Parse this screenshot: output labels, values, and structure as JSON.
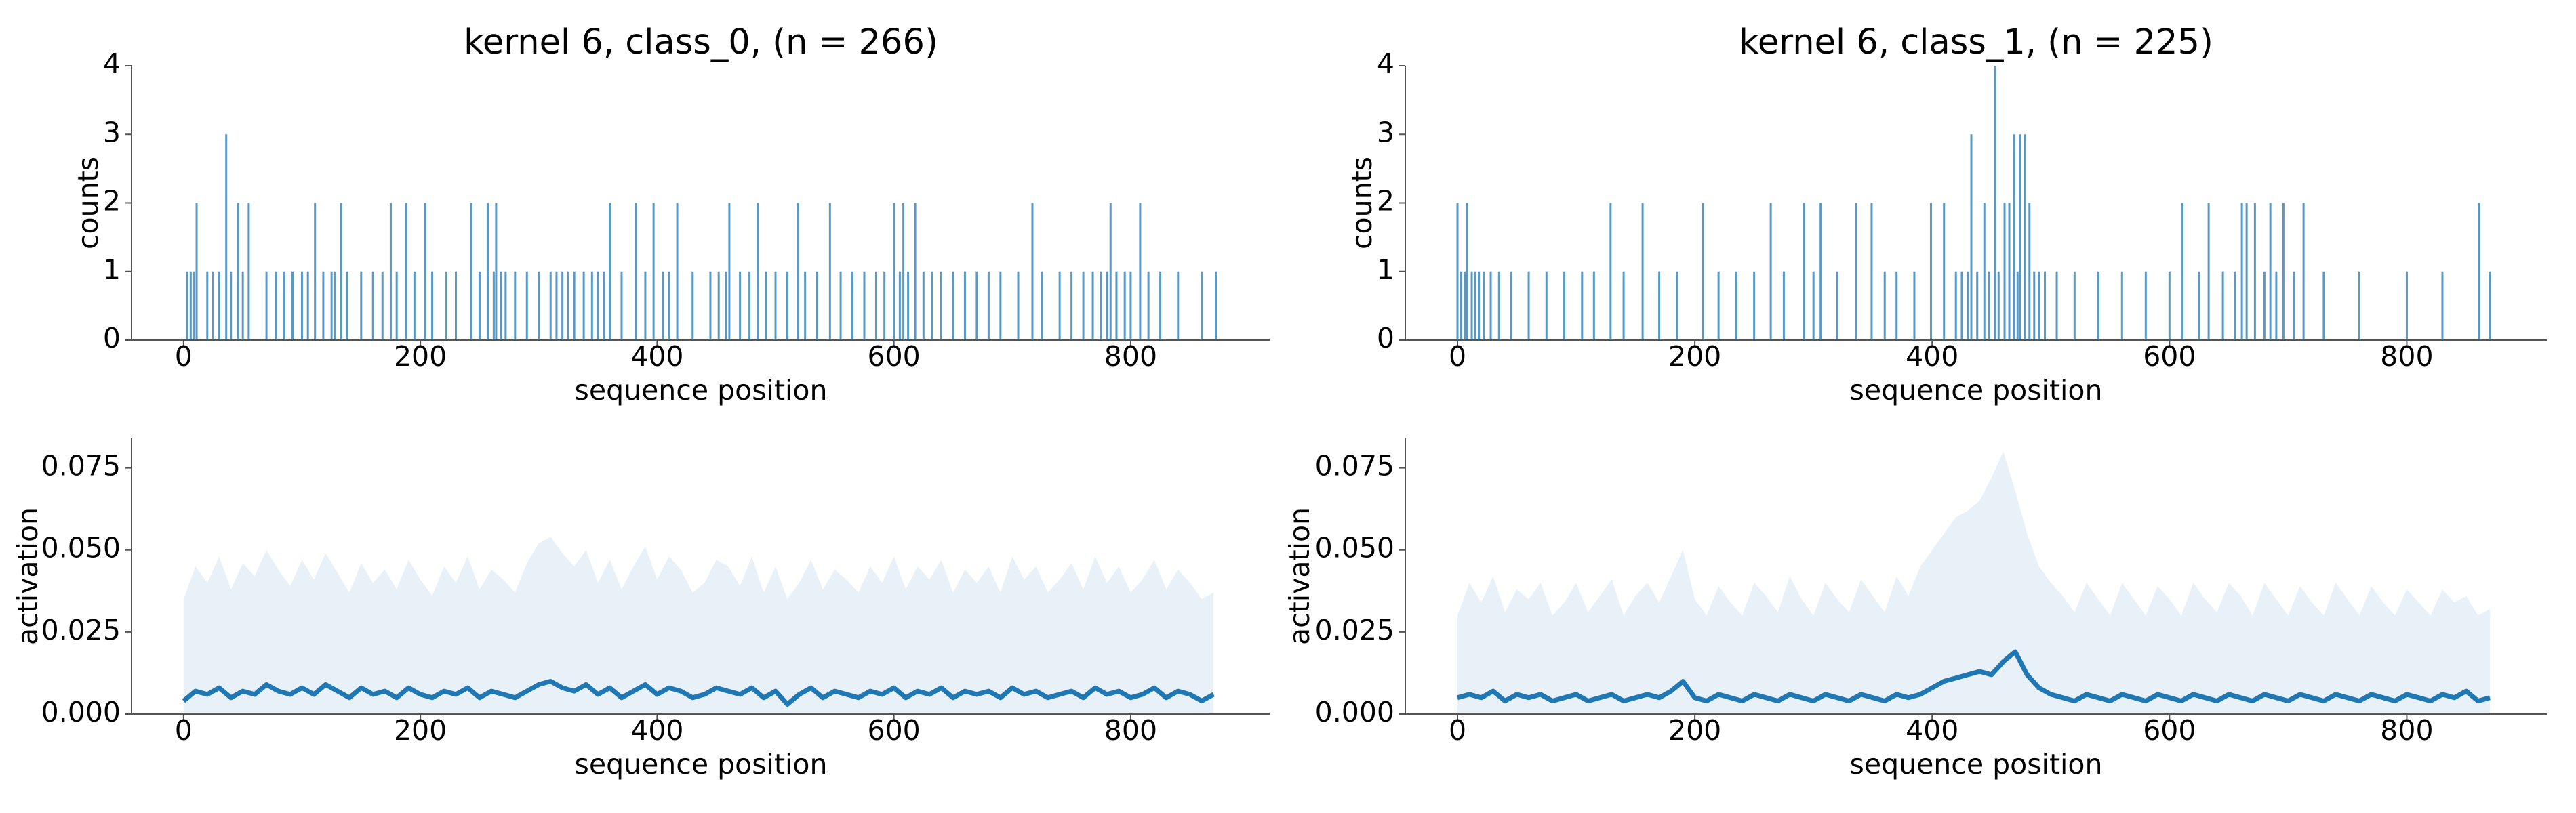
{
  "chart_data": [
    {
      "type": "bar",
      "title": "kernel 6, class_0, (n = 266)",
      "x_label": "sequence position",
      "y_label": "counts",
      "color": "#1f77b4",
      "xlim": [
        -44,
        918
      ],
      "xticks": [
        0,
        200,
        400,
        600,
        800
      ],
      "ylim": [
        0,
        4
      ],
      "yticks": [
        0,
        1,
        2,
        3,
        4
      ],
      "x": [
        3,
        6,
        9,
        11,
        20,
        25,
        30,
        36,
        40,
        46,
        50,
        55,
        70,
        78,
        85,
        92,
        100,
        105,
        111,
        118,
        125,
        128,
        133,
        138,
        150,
        160,
        168,
        175,
        180,
        188,
        195,
        204,
        210,
        222,
        230,
        243,
        250,
        257,
        262,
        264,
        268,
        272,
        280,
        290,
        300,
        310,
        315,
        320,
        325,
        330,
        338,
        345,
        350,
        355,
        360,
        370,
        382,
        390,
        397,
        405,
        410,
        417,
        430,
        445,
        452,
        458,
        461,
        470,
        478,
        485,
        492,
        500,
        510,
        519,
        525,
        535,
        546,
        555,
        565,
        575,
        585,
        592,
        600,
        605,
        608,
        612,
        618,
        625,
        632,
        640,
        650,
        660,
        670,
        680,
        690,
        705,
        717,
        725,
        740,
        750,
        760,
        768,
        775,
        780,
        783,
        788,
        795,
        800,
        808,
        815,
        825,
        840,
        860,
        872
      ],
      "values": [
        1,
        1,
        1,
        2,
        1,
        1,
        1,
        3,
        1,
        2,
        1,
        2,
        1,
        1,
        1,
        1,
        1,
        1,
        2,
        1,
        1,
        1,
        2,
        1,
        1,
        1,
        1,
        2,
        1,
        2,
        1,
        2,
        1,
        1,
        1,
        2,
        1,
        2,
        1,
        2,
        1,
        1,
        1,
        1,
        1,
        1,
        1,
        1,
        1,
        1,
        1,
        1,
        1,
        1,
        2,
        1,
        2,
        1,
        2,
        1,
        1,
        2,
        1,
        1,
        1,
        1,
        2,
        1,
        1,
        2,
        1,
        1,
        1,
        2,
        1,
        1,
        2,
        1,
        1,
        1,
        1,
        1,
        2,
        1,
        2,
        1,
        2,
        1,
        1,
        1,
        1,
        1,
        1,
        1,
        1,
        1,
        2,
        1,
        1,
        1,
        1,
        1,
        1,
        1,
        2,
        1,
        1,
        1,
        2,
        1,
        1,
        1,
        1,
        1
      ]
    },
    {
      "type": "bar",
      "title": "kernel 6, class_1, (n = 225)",
      "x_label": "sequence position",
      "y_label": "counts",
      "color": "#1f77b4",
      "xlim": [
        -44,
        918
      ],
      "xticks": [
        0,
        200,
        400,
        600,
        800
      ],
      "ylim": [
        0,
        4
      ],
      "yticks": [
        0,
        1,
        2,
        3,
        4
      ],
      "x": [
        0,
        3,
        6,
        8,
        12,
        15,
        18,
        22,
        28,
        35,
        45,
        60,
        75,
        90,
        105,
        115,
        129,
        140,
        156,
        170,
        185,
        207,
        220,
        235,
        250,
        264,
        275,
        292,
        300,
        306,
        320,
        336,
        349,
        360,
        370,
        385,
        399,
        410,
        420,
        425,
        430,
        433,
        438,
        444,
        448,
        453,
        456,
        461,
        465,
        469,
        472,
        474,
        478,
        482,
        486,
        490,
        495,
        505,
        520,
        540,
        560,
        580,
        600,
        611,
        625,
        633,
        645,
        655,
        661,
        665,
        672,
        680,
        685,
        690,
        696,
        705,
        713,
        730,
        760,
        800,
        830,
        861,
        870
      ],
      "values": [
        2,
        1,
        1,
        2,
        1,
        1,
        1,
        1,
        1,
        1,
        1,
        1,
        1,
        1,
        1,
        1,
        2,
        1,
        2,
        1,
        1,
        2,
        1,
        1,
        1,
        2,
        1,
        2,
        1,
        2,
        1,
        2,
        2,
        1,
        1,
        1,
        2,
        2,
        1,
        1,
        1,
        3,
        1,
        2,
        1,
        4,
        1,
        2,
        2,
        3,
        1,
        3,
        3,
        2,
        1,
        1,
        1,
        1,
        1,
        1,
        1,
        1,
        1,
        2,
        1,
        2,
        1,
        1,
        2,
        2,
        2,
        1,
        2,
        1,
        2,
        1,
        2,
        1,
        1,
        1,
        1,
        2,
        1
      ]
    },
    {
      "type": "line",
      "x_label": "sequence position",
      "y_label": "activation",
      "color": "#1f77b4",
      "xlim": [
        -44,
        918
      ],
      "xticks": [
        0,
        200,
        400,
        600,
        800
      ],
      "ylim": [
        0,
        0.084
      ],
      "yticks": [
        {
          "value": 0,
          "label": "0.000"
        },
        {
          "value": 0.025,
          "label": "0.025"
        },
        {
          "value": 0.05,
          "label": "0.050"
        },
        {
          "value": 0.075,
          "label": "0.075"
        }
      ],
      "x": [
        0,
        10,
        20,
        30,
        40,
        50,
        60,
        70,
        80,
        90,
        100,
        110,
        120,
        130,
        140,
        150,
        160,
        170,
        180,
        190,
        200,
        210,
        220,
        230,
        240,
        250,
        260,
        270,
        280,
        290,
        300,
        310,
        320,
        330,
        340,
        350,
        360,
        370,
        380,
        390,
        400,
        410,
        420,
        430,
        440,
        450,
        460,
        470,
        480,
        490,
        500,
        510,
        520,
        530,
        540,
        550,
        560,
        570,
        580,
        590,
        600,
        610,
        620,
        630,
        640,
        650,
        660,
        670,
        680,
        690,
        700,
        710,
        720,
        730,
        740,
        750,
        760,
        770,
        780,
        790,
        800,
        810,
        820,
        830,
        840,
        850,
        860,
        870
      ],
      "values": [
        0.004,
        0.007,
        0.006,
        0.008,
        0.005,
        0.007,
        0.006,
        0.009,
        0.007,
        0.006,
        0.008,
        0.006,
        0.009,
        0.007,
        0.005,
        0.008,
        0.006,
        0.007,
        0.005,
        0.008,
        0.006,
        0.005,
        0.007,
        0.006,
        0.008,
        0.005,
        0.007,
        0.006,
        0.005,
        0.007,
        0.009,
        0.01,
        0.008,
        0.007,
        0.009,
        0.006,
        0.008,
        0.005,
        0.007,
        0.009,
        0.006,
        0.008,
        0.007,
        0.005,
        0.006,
        0.008,
        0.007,
        0.006,
        0.008,
        0.005,
        0.007,
        0.003,
        0.006,
        0.008,
        0.005,
        0.007,
        0.006,
        0.005,
        0.007,
        0.006,
        0.008,
        0.005,
        0.007,
        0.006,
        0.008,
        0.005,
        0.007,
        0.006,
        0.007,
        0.005,
        0.008,
        0.006,
        0.007,
        0.005,
        0.006,
        0.007,
        0.005,
        0.008,
        0.006,
        0.007,
        0.005,
        0.006,
        0.008,
        0.005,
        0.007,
        0.006,
        0.004,
        0.006
      ],
      "band": [
        0.035,
        0.045,
        0.04,
        0.048,
        0.038,
        0.046,
        0.042,
        0.05,
        0.044,
        0.039,
        0.047,
        0.041,
        0.049,
        0.043,
        0.037,
        0.046,
        0.04,
        0.044,
        0.038,
        0.047,
        0.041,
        0.036,
        0.045,
        0.04,
        0.048,
        0.038,
        0.044,
        0.041,
        0.037,
        0.046,
        0.052,
        0.054,
        0.049,
        0.045,
        0.05,
        0.04,
        0.047,
        0.038,
        0.045,
        0.051,
        0.041,
        0.048,
        0.044,
        0.037,
        0.04,
        0.047,
        0.045,
        0.039,
        0.048,
        0.037,
        0.045,
        0.035,
        0.04,
        0.047,
        0.038,
        0.044,
        0.041,
        0.037,
        0.045,
        0.04,
        0.048,
        0.038,
        0.045,
        0.041,
        0.047,
        0.037,
        0.044,
        0.04,
        0.045,
        0.037,
        0.048,
        0.041,
        0.045,
        0.037,
        0.041,
        0.046,
        0.038,
        0.048,
        0.04,
        0.045,
        0.037,
        0.041,
        0.047,
        0.038,
        0.044,
        0.04,
        0.035,
        0.037
      ]
    },
    {
      "type": "line",
      "x_label": "sequence position",
      "y_label": "activation",
      "color": "#1f77b4",
      "xlim": [
        -44,
        918
      ],
      "xticks": [
        0,
        200,
        400,
        600,
        800
      ],
      "ylim": [
        0,
        0.084
      ],
      "yticks": [
        {
          "value": 0,
          "label": "0.000"
        },
        {
          "value": 0.025,
          "label": "0.025"
        },
        {
          "value": 0.05,
          "label": "0.050"
        },
        {
          "value": 0.075,
          "label": "0.075"
        }
      ],
      "x": [
        0,
        10,
        20,
        30,
        40,
        50,
        60,
        70,
        80,
        90,
        100,
        110,
        120,
        130,
        140,
        150,
        160,
        170,
        180,
        190,
        200,
        210,
        220,
        230,
        240,
        250,
        260,
        270,
        280,
        290,
        300,
        310,
        320,
        330,
        340,
        350,
        360,
        370,
        380,
        390,
        400,
        410,
        420,
        430,
        440,
        450,
        460,
        470,
        480,
        490,
        500,
        510,
        520,
        530,
        540,
        550,
        560,
        570,
        580,
        590,
        600,
        610,
        620,
        630,
        640,
        650,
        660,
        670,
        680,
        690,
        700,
        710,
        720,
        730,
        740,
        750,
        760,
        770,
        780,
        790,
        800,
        810,
        820,
        830,
        840,
        850,
        860,
        870
      ],
      "values": [
        0.005,
        0.006,
        0.005,
        0.007,
        0.004,
        0.006,
        0.005,
        0.006,
        0.004,
        0.005,
        0.006,
        0.004,
        0.005,
        0.006,
        0.004,
        0.005,
        0.006,
        0.005,
        0.007,
        0.01,
        0.005,
        0.004,
        0.006,
        0.005,
        0.004,
        0.006,
        0.005,
        0.004,
        0.006,
        0.005,
        0.004,
        0.006,
        0.005,
        0.004,
        0.006,
        0.005,
        0.004,
        0.006,
        0.005,
        0.006,
        0.008,
        0.01,
        0.011,
        0.012,
        0.013,
        0.012,
        0.016,
        0.019,
        0.012,
        0.008,
        0.006,
        0.005,
        0.004,
        0.006,
        0.005,
        0.004,
        0.006,
        0.005,
        0.004,
        0.006,
        0.005,
        0.004,
        0.006,
        0.005,
        0.004,
        0.006,
        0.005,
        0.004,
        0.006,
        0.005,
        0.004,
        0.006,
        0.005,
        0.004,
        0.006,
        0.005,
        0.004,
        0.006,
        0.005,
        0.004,
        0.006,
        0.005,
        0.004,
        0.006,
        0.005,
        0.007,
        0.004,
        0.005
      ],
      "band": [
        0.03,
        0.04,
        0.034,
        0.042,
        0.031,
        0.038,
        0.035,
        0.04,
        0.03,
        0.034,
        0.04,
        0.031,
        0.036,
        0.041,
        0.03,
        0.036,
        0.04,
        0.034,
        0.042,
        0.05,
        0.035,
        0.03,
        0.039,
        0.034,
        0.03,
        0.04,
        0.036,
        0.031,
        0.042,
        0.035,
        0.03,
        0.04,
        0.035,
        0.031,
        0.041,
        0.036,
        0.031,
        0.042,
        0.036,
        0.045,
        0.05,
        0.055,
        0.06,
        0.062,
        0.065,
        0.072,
        0.08,
        0.068,
        0.055,
        0.045,
        0.04,
        0.036,
        0.031,
        0.04,
        0.035,
        0.03,
        0.04,
        0.035,
        0.03,
        0.039,
        0.035,
        0.03,
        0.04,
        0.035,
        0.031,
        0.04,
        0.036,
        0.03,
        0.04,
        0.035,
        0.03,
        0.039,
        0.034,
        0.03,
        0.04,
        0.035,
        0.03,
        0.039,
        0.034,
        0.03,
        0.038,
        0.034,
        0.03,
        0.038,
        0.034,
        0.036,
        0.03,
        0.032
      ]
    }
  ]
}
